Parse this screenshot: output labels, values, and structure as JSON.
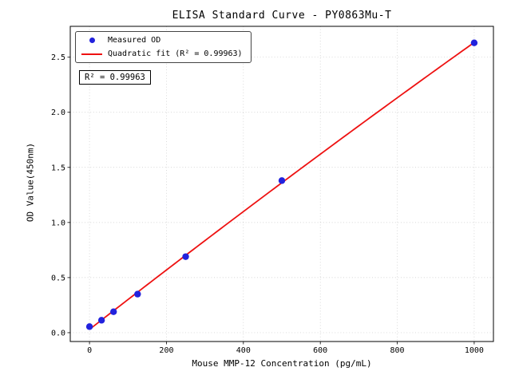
{
  "chart_data": {
    "type": "scatter",
    "title": "ELISA Standard Curve - PY0863Mu-T",
    "xlabel": "Mouse MMP-12 Concentration (pg/mL)",
    "ylabel": "OD Value(450nm)",
    "xlim": [
      -50,
      1050
    ],
    "ylim": [
      -0.08,
      2.78
    ],
    "x_tick_labels": [
      "0",
      "200",
      "400",
      "600",
      "800",
      "1000"
    ],
    "y_tick_labels": [
      "0.0",
      "0.5",
      "1.0",
      "1.5",
      "2.0",
      "2.5"
    ],
    "grid": true,
    "grid_color": "#c9c9c9",
    "legend_position": "upper-left",
    "annotation": "R² = 0.99963",
    "series": [
      {
        "name": "Measured OD",
        "kind": "scatter",
        "marker": "circle",
        "color": "#2222dd",
        "x": [
          0,
          31.25,
          62.5,
          125,
          250,
          500,
          1000
        ],
        "y": [
          0.055,
          0.113,
          0.19,
          0.35,
          0.69,
          1.38,
          2.63
        ]
      },
      {
        "name": "Quadratic fit (R² = 0.99963)",
        "kind": "line",
        "marker": "line",
        "color": "#ee1111",
        "fit": "quadratic",
        "fit_source": 0,
        "x_range": [
          0,
          1000
        ]
      }
    ]
  }
}
